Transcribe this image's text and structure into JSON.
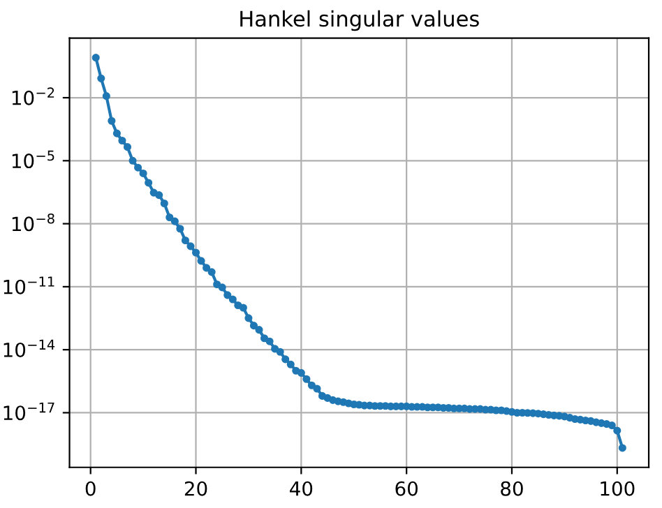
{
  "chart_data": {
    "type": "line",
    "title": "Hankel singular values",
    "log": "y",
    "grid": true,
    "marker": "circle",
    "line_style": "solid",
    "x": [
      1,
      2,
      3,
      4,
      5,
      6,
      7,
      8,
      9,
      10,
      11,
      12,
      13,
      14,
      15,
      16,
      17,
      18,
      19,
      20,
      21,
      22,
      23,
      24,
      25,
      26,
      27,
      28,
      29,
      30,
      31,
      32,
      33,
      34,
      35,
      36,
      37,
      38,
      39,
      40,
      41,
      42,
      43,
      44,
      45,
      46,
      47,
      48,
      49,
      50,
      51,
      52,
      53,
      54,
      55,
      56,
      57,
      58,
      59,
      60,
      61,
      62,
      63,
      64,
      65,
      66,
      67,
      68,
      69,
      70,
      71,
      72,
      73,
      74,
      75,
      76,
      77,
      78,
      79,
      80,
      81,
      82,
      83,
      84,
      85,
      86,
      87,
      88,
      89,
      90,
      91,
      92,
      93,
      94,
      95,
      96,
      97,
      98,
      99,
      100,
      101
    ],
    "series": [
      {
        "color": "#1f77b4",
        "values": [
          0.81,
          0.083,
          0.012,
          0.00079,
          0.0002,
          9.1e-05,
          4.5e-05,
          1e-05,
          4.7e-06,
          2.5e-06,
          8.9e-07,
          3e-07,
          2.3e-07,
          9.3e-08,
          2e-08,
          1.3e-08,
          5.8e-09,
          1.6e-09,
          8.5e-10,
          4.2e-10,
          1.7e-10,
          7.9e-11,
          5e-11,
          1.3e-11,
          9.3e-12,
          4e-12,
          2.5e-12,
          1.3e-12,
          1e-12,
          3.2e-13,
          1.4e-13,
          8.9e-14,
          3.5e-14,
          2.5e-14,
          1.1e-14,
          7.9e-15,
          3.5e-15,
          2e-15,
          1e-15,
          7.9e-16,
          4e-16,
          2e-16,
          1.4e-16,
          6.3e-17,
          5e-17,
          4e-17,
          3.5e-17,
          3.2e-17,
          2.8e-17,
          2.5e-17,
          2.4e-17,
          2.2e-17,
          2.2e-17,
          2.1e-17,
          2.1e-17,
          2.1e-17,
          2e-17,
          2e-17,
          2e-17,
          2e-17,
          1.9e-17,
          1.9e-17,
          1.9e-17,
          1.8e-17,
          1.8e-17,
          1.8e-17,
          1.7e-17,
          1.7e-17,
          1.6e-17,
          1.6e-17,
          1.6e-17,
          1.5e-17,
          1.5e-17,
          1.5e-17,
          1.4e-17,
          1.4e-17,
          1.3e-17,
          1.3e-17,
          1.2e-17,
          1.1e-17,
          1e-17,
          1e-17,
          9.8e-18,
          9.5e-18,
          9.1e-18,
          8.5e-18,
          7.9e-18,
          7.4e-18,
          7.1e-18,
          6.6e-18,
          5.8e-18,
          5e-18,
          4.7e-18,
          4.3e-18,
          4e-18,
          3.5e-18,
          3.2e-18,
          2.9e-18,
          2.5e-18,
          1.4e-18,
          2.1e-19
        ]
      }
    ],
    "xlim": [
      -4,
      106
    ],
    "xticks": [
      0,
      20,
      40,
      60,
      80,
      100
    ],
    "ylim": [
      2.5e-20,
      6.9
    ],
    "yticks": [
      {
        "value": 0.01,
        "label": "10$^{−2}$"
      },
      {
        "value": 1e-05,
        "label": "10$^{−5}$"
      },
      {
        "value": 1e-08,
        "label": "10$^{−8}$"
      },
      {
        "value": 1e-11,
        "label": "10$^{−11}$"
      },
      {
        "value": 1e-14,
        "label": "10$^{−14}$"
      },
      {
        "value": 1e-17,
        "label": "10$^{−17}$"
      }
    ]
  }
}
